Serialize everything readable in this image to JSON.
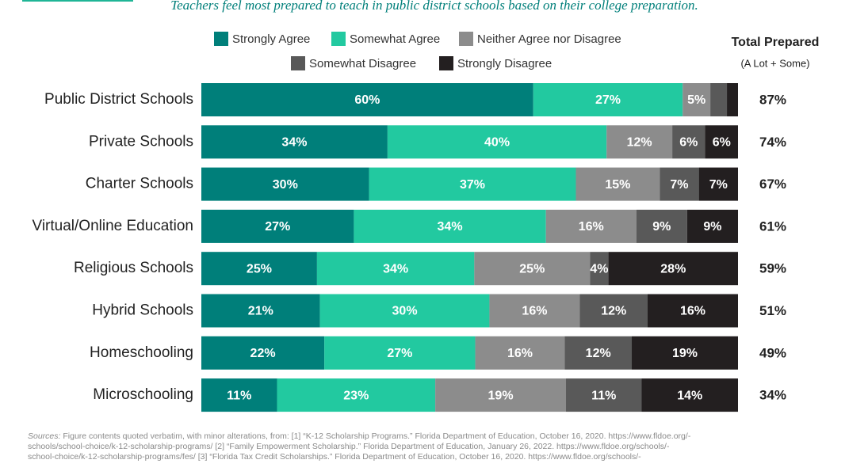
{
  "chart_data": {
    "type": "bar",
    "orientation": "horizontal",
    "stacking": "normalized",
    "subtitle": "Teachers feel most prepared to teach in public district schools based on their college preparation.",
    "categories": [
      "Public District Schools",
      "Private Schools",
      "Charter Schools",
      "Virtual/Online Education",
      "Religious Schools",
      "Hybrid Schools",
      "Homeschooling",
      "Microschooling"
    ],
    "series": [
      {
        "name": "Strongly Agree",
        "color": "#007f7a",
        "values": [
          60,
          34,
          30,
          27,
          25,
          21,
          22,
          11
        ],
        "value_labels": [
          "60%",
          "34%",
          "30%",
          "27%",
          "25%",
          "21%",
          "22%",
          "11%"
        ]
      },
      {
        "name": "Somewhat Agree",
        "color": "#22c9a0",
        "values": [
          27,
          40,
          37,
          34,
          34,
          30,
          27,
          23
        ],
        "value_labels": [
          "27%",
          "40%",
          "37%",
          "34%",
          "34%",
          "30%",
          "27%",
          "23%"
        ]
      },
      {
        "name": "Neither Agree nor Disagree",
        "color": "#8c8c8c",
        "values": [
          5,
          12,
          15,
          16,
          25,
          16,
          16,
          19
        ],
        "value_labels": [
          "5%",
          "12%",
          "15%",
          "16%",
          "25%",
          "16%",
          "16%",
          "19%"
        ]
      },
      {
        "name": "Somewhat Disagree",
        "color": "#595959",
        "values": [
          3,
          6,
          7,
          9,
          4,
          12,
          12,
          11
        ],
        "value_labels": [
          null,
          "6%",
          "7%",
          "9%",
          "4%",
          "12%",
          "12%",
          "11%"
        ]
      },
      {
        "name": "Strongly Disagree",
        "color": "#231f20",
        "values": [
          2,
          6,
          7,
          9,
          28,
          16,
          19,
          14
        ],
        "value_labels": [
          null,
          "6%",
          "7%",
          "9%",
          "28%",
          "16%",
          "19%",
          "14%"
        ]
      }
    ],
    "totals": {
      "title": "Total Prepared",
      "subtitle": "(A Lot + Some)",
      "values": [
        87,
        74,
        67,
        61,
        59,
        51,
        49,
        34
      ],
      "value_labels": [
        "87%",
        "74%",
        "67%",
        "61%",
        "59%",
        "51%",
        "49%",
        "34%"
      ]
    },
    "source_label": "Sources:",
    "sources": [
      "Figure contents quoted verbatim, with minor alterations, from: [1] “K-12 Scholarship Programs.” Florida Department of Education, October 16, 2020. https://www.fldoe.org/-",
      "schools/school-choice/k-12-scholarship-programs/ [2] “Family Empowerment Scholarship.” Florida Department of Education, January 26, 2022. https://www.fldoe.org/schools/-",
      "school-choice/k-12-scholarship-programs/fes/ [3] “Florida Tax Credit Scholarships.” Florida Department of Education, October 16, 2020. https://www.fldoe.org/schools/-"
    ]
  }
}
